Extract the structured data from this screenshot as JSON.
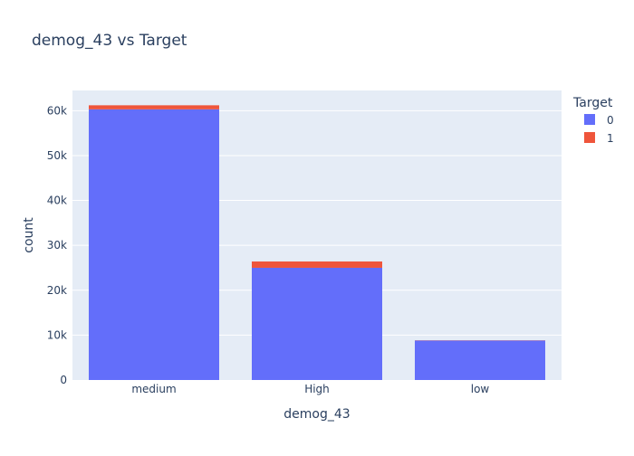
{
  "chart_data": {
    "type": "bar",
    "barmode": "stack",
    "title": "demog_43 vs Target",
    "xlabel": "demog_43",
    "ylabel": "count",
    "categories": [
      "medium",
      "High",
      "low"
    ],
    "series": [
      {
        "name": "0",
        "color": "#636efa",
        "values": [
          60300,
          25000,
          8800
        ]
      },
      {
        "name": "1",
        "color": "#ef553b",
        "values": [
          900,
          1400,
          50
        ]
      }
    ],
    "ylim": [
      0,
      64500
    ],
    "yticks": [
      0,
      10000,
      20000,
      30000,
      40000,
      50000,
      60000
    ],
    "ytick_labels": [
      "0",
      "10k",
      "20k",
      "30k",
      "40k",
      "50k",
      "60k"
    ],
    "legend_title": "Target",
    "legend_position": "top-right",
    "grid": true,
    "plot_background": "#e5ecf6"
  }
}
